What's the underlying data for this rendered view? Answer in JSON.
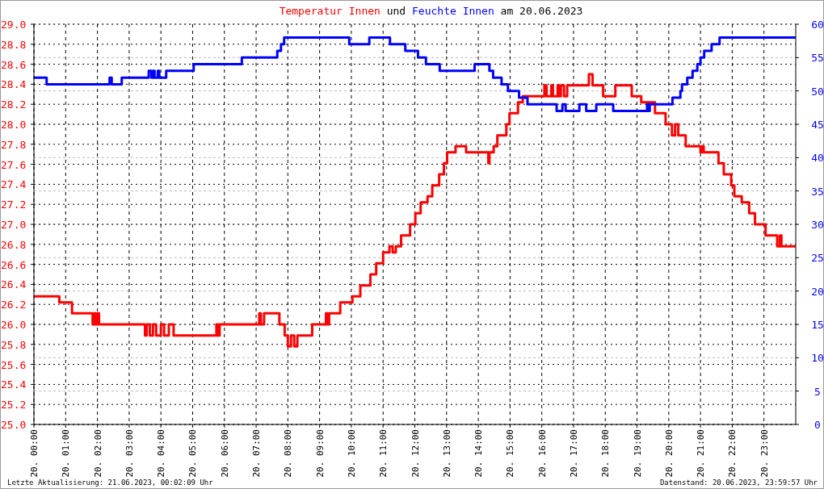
{
  "chart_data": {
    "type": "step",
    "title": "Temperatur Innen und Feuchte Innen am 20.06.2023",
    "xlim": [
      "2023-06-20T00:00",
      "2023-06-21T00:00"
    ],
    "xticks": [
      {
        "value": "2023-06-20T00:00",
        "label": "20. 00:00"
      },
      {
        "value": "2023-06-20T01:00",
        "label": "20. 01:00"
      },
      {
        "value": "2023-06-20T02:00",
        "label": "20. 02:00"
      },
      {
        "value": "2023-06-20T03:00",
        "label": "20. 03:00"
      },
      {
        "value": "2023-06-20T04:00",
        "label": "20. 04:00"
      },
      {
        "value": "2023-06-20T05:00",
        "label": "20. 05:00"
      },
      {
        "value": "2023-06-20T06:00",
        "label": "20. 06:00"
      },
      {
        "value": "2023-06-20T07:00",
        "label": "20. 07:00"
      },
      {
        "value": "2023-06-20T08:00",
        "label": "20. 08:00"
      },
      {
        "value": "2023-06-20T09:00",
        "label": "20. 09:00"
      },
      {
        "value": "2023-06-20T10:00",
        "label": "20. 10:00"
      },
      {
        "value": "2023-06-20T11:00",
        "label": "20. 11:00"
      },
      {
        "value": "2023-06-20T12:00",
        "label": "20. 12:00"
      },
      {
        "value": "2023-06-20T13:00",
        "label": "20. 13:00"
      },
      {
        "value": "2023-06-20T14:00",
        "label": "20. 14:00"
      },
      {
        "value": "2023-06-20T15:00",
        "label": "20. 15:00"
      },
      {
        "value": "2023-06-20T16:00",
        "label": "20. 16:00"
      },
      {
        "value": "2023-06-20T17:00",
        "label": "20. 17:00"
      },
      {
        "value": "2023-06-20T18:00",
        "label": "20. 18:00"
      },
      {
        "value": "2023-06-20T19:00",
        "label": "20. 19:00"
      },
      {
        "value": "2023-06-20T20:00",
        "label": "20. 20:00"
      },
      {
        "value": "2023-06-20T21:00",
        "label": "20. 21:00"
      },
      {
        "value": "2023-06-20T22:00",
        "label": "20. 22:00"
      },
      {
        "value": "2023-06-20T23:00",
        "label": "20. 23:00"
      }
    ],
    "ylim": [
      25,
      29
    ],
    "yticks": [
      {
        "value": 25,
        "label": "25.0"
      },
      {
        "value": 25.2,
        "label": "25.2"
      },
      {
        "value": 25.4,
        "label": "25.4"
      },
      {
        "value": 25.6,
        "label": "25.6"
      },
      {
        "value": 25.8,
        "label": "25.8"
      },
      {
        "value": 26,
        "label": "26.0"
      },
      {
        "value": 26.2,
        "label": "26.2"
      },
      {
        "value": 26.4,
        "label": "26.4"
      },
      {
        "value": 26.6,
        "label": "26.6"
      },
      {
        "value": 26.8,
        "label": "26.8"
      },
      {
        "value": 27,
        "label": "27.0"
      },
      {
        "value": 27.2,
        "label": "27.2"
      },
      {
        "value": 27.4,
        "label": "27.4"
      },
      {
        "value": 27.6,
        "label": "27.6"
      },
      {
        "value": 27.8,
        "label": "27.8"
      },
      {
        "value": 28,
        "label": "28.0"
      },
      {
        "value": 28.2,
        "label": "28.2"
      },
      {
        "value": 28.4,
        "label": "28.4"
      },
      {
        "value": 28.6,
        "label": "28.6"
      },
      {
        "value": 28.8,
        "label": "28.8"
      },
      {
        "value": 29,
        "label": "29.0"
      }
    ],
    "y2lim": [
      0,
      60
    ],
    "y2ticks": [
      0,
      5,
      10,
      15,
      20,
      25,
      30,
      35,
      40,
      45,
      50,
      55,
      60
    ],
    "grid": true,
    "annotations": [
      "Letzte Aktualisierung: 21.06.2023, 00:02:09 Uhr",
      "Datenstand: 20.06.2023, 23:59:57 Uhr"
    ],
    "series": [
      {
        "color": "#ff0000",
        "x": [
          "2023-06-20T00:00",
          "2023-06-20T00:48",
          "2023-06-20T01:12",
          "2023-06-20T01:51",
          "2023-06-20T01:54",
          "2023-06-20T01:57",
          "2023-06-20T02:00",
          "2023-06-20T02:03",
          "2023-06-20T03:30",
          "2023-06-20T03:33",
          "2023-06-20T03:39",
          "2023-06-20T03:45",
          "2023-06-20T03:51",
          "2023-06-20T04:00",
          "2023-06-20T04:06",
          "2023-06-20T04:15",
          "2023-06-20T04:24",
          "2023-06-20T05:45",
          "2023-06-20T05:48",
          "2023-06-20T05:51",
          "2023-06-20T07:06",
          "2023-06-20T07:09",
          "2023-06-20T07:15",
          "2023-06-20T07:44",
          "2023-06-20T07:54",
          "2023-06-20T08:00",
          "2023-06-20T08:06",
          "2023-06-20T08:12",
          "2023-06-20T08:18",
          "2023-06-20T08:46",
          "2023-06-20T09:12",
          "2023-06-20T09:15",
          "2023-06-20T09:18",
          "2023-06-20T09:39",
          "2023-06-20T10:02",
          "2023-06-20T10:17",
          "2023-06-20T10:36",
          "2023-06-20T10:47",
          "2023-06-20T11:00",
          "2023-06-20T11:12",
          "2023-06-20T11:18",
          "2023-06-20T11:24",
          "2023-06-20T11:34",
          "2023-06-20T11:51",
          "2023-06-20T12:01",
          "2023-06-20T12:11",
          "2023-06-20T12:24",
          "2023-06-20T12:33",
          "2023-06-20T12:46",
          "2023-06-20T12:55",
          "2023-06-20T13:01",
          "2023-06-20T13:17",
          "2023-06-20T13:37",
          "2023-06-20T14:19",
          "2023-06-20T14:21",
          "2023-06-20T14:29",
          "2023-06-20T14:36",
          "2023-06-20T14:53",
          "2023-06-20T14:59",
          "2023-06-20T15:15",
          "2023-06-20T15:24",
          "2023-06-20T16:05",
          "2023-06-20T16:09",
          "2023-06-20T16:18",
          "2023-06-20T16:21",
          "2023-06-20T16:30",
          "2023-06-20T16:33",
          "2023-06-20T16:36",
          "2023-06-20T16:42",
          "2023-06-20T16:48",
          "2023-06-20T17:29",
          "2023-06-20T17:36",
          "2023-06-20T17:56",
          "2023-06-20T18:19",
          "2023-06-20T18:50",
          "2023-06-20T19:08",
          "2023-06-20T19:34",
          "2023-06-20T19:54",
          "2023-06-20T20:06",
          "2023-06-20T20:12",
          "2023-06-20T20:18",
          "2023-06-20T20:32",
          "2023-06-20T21:00",
          "2023-06-20T21:03",
          "2023-06-20T21:06",
          "2023-06-20T21:34",
          "2023-06-20T21:44",
          "2023-06-20T21:58",
          "2023-06-20T22:04",
          "2023-06-20T22:18",
          "2023-06-20T22:32",
          "2023-06-20T22:43",
          "2023-06-20T23:03",
          "2023-06-20T23:25",
          "2023-06-20T23:30",
          "2023-06-20T23:33",
          "2023-06-21T00:00"
        ],
        "values": [
          26.28,
          26.22,
          26.11,
          26.0,
          26.11,
          26.0,
          26.11,
          26.0,
          25.89,
          26.0,
          25.89,
          26.0,
          25.89,
          26.0,
          25.89,
          26.0,
          25.89,
          26.0,
          25.89,
          26.0,
          26.11,
          26.0,
          26.11,
          26.0,
          25.89,
          25.78,
          25.89,
          25.78,
          25.89,
          26.0,
          26.11,
          26.0,
          26.11,
          26.22,
          26.28,
          26.39,
          26.5,
          26.61,
          26.72,
          26.78,
          26.72,
          26.78,
          26.89,
          27.0,
          27.11,
          27.22,
          27.28,
          27.39,
          27.5,
          27.61,
          27.72,
          27.78,
          27.72,
          27.61,
          27.72,
          27.78,
          27.89,
          28.0,
          28.11,
          28.22,
          28.28,
          28.39,
          28.28,
          28.39,
          28.28,
          28.39,
          28.28,
          28.39,
          28.28,
          28.39,
          28.5,
          28.39,
          28.28,
          28.39,
          28.28,
          28.22,
          28.11,
          28.0,
          27.89,
          28.0,
          27.89,
          27.78,
          27.72,
          27.78,
          27.72,
          27.61,
          27.5,
          27.39,
          27.28,
          27.22,
          27.11,
          27.0,
          26.89,
          26.78,
          26.89,
          26.78,
          26.78
        ]
      },
      {
        "color": "#0000ff",
        "axis": "y2",
        "x": [
          "2023-06-20T00:00",
          "2023-06-20T00:24",
          "2023-06-20T02:23",
          "2023-06-20T02:27",
          "2023-06-20T02:46",
          "2023-06-20T03:37",
          "2023-06-20T03:42",
          "2023-06-20T03:45",
          "2023-06-20T03:48",
          "2023-06-20T03:54",
          "2023-06-20T03:57",
          "2023-06-20T04:10",
          "2023-06-20T05:02",
          "2023-06-20T06:33",
          "2023-06-20T07:40",
          "2023-06-20T07:47",
          "2023-06-20T07:53",
          "2023-06-20T09:56",
          "2023-06-20T10:34",
          "2023-06-20T11:13",
          "2023-06-20T11:42",
          "2023-06-20T12:06",
          "2023-06-20T12:21",
          "2023-06-20T12:47",
          "2023-06-20T13:53",
          "2023-06-20T14:21",
          "2023-06-20T14:28",
          "2023-06-20T14:44",
          "2023-06-20T14:56",
          "2023-06-20T15:17",
          "2023-06-20T15:33",
          "2023-06-20T16:28",
          "2023-06-20T16:39",
          "2023-06-20T16:45",
          "2023-06-20T17:11",
          "2023-06-20T17:24",
          "2023-06-20T17:43",
          "2023-06-20T18:15",
          "2023-06-20T19:19",
          "2023-06-20T19:21",
          "2023-06-20T19:24",
          "2023-06-20T20:07",
          "2023-06-20T20:22",
          "2023-06-20T20:25",
          "2023-06-20T20:35",
          "2023-06-20T20:45",
          "2023-06-20T20:54",
          "2023-06-20T21:00",
          "2023-06-20T21:07",
          "2023-06-20T21:21",
          "2023-06-20T21:36",
          "2023-06-21T00:00"
        ],
        "values": [
          52,
          51,
          52,
          51,
          52,
          53,
          52,
          53,
          52,
          53,
          52,
          53,
          54,
          55,
          56,
          57,
          58,
          57,
          58,
          57,
          56,
          55,
          54,
          53,
          54,
          53,
          52,
          51,
          50,
          49,
          48,
          47,
          48,
          47,
          48,
          47,
          48,
          47,
          48,
          47,
          48,
          49,
          50,
          51,
          52,
          53,
          54,
          55,
          56,
          57,
          58,
          58
        ]
      }
    ]
  }
}
